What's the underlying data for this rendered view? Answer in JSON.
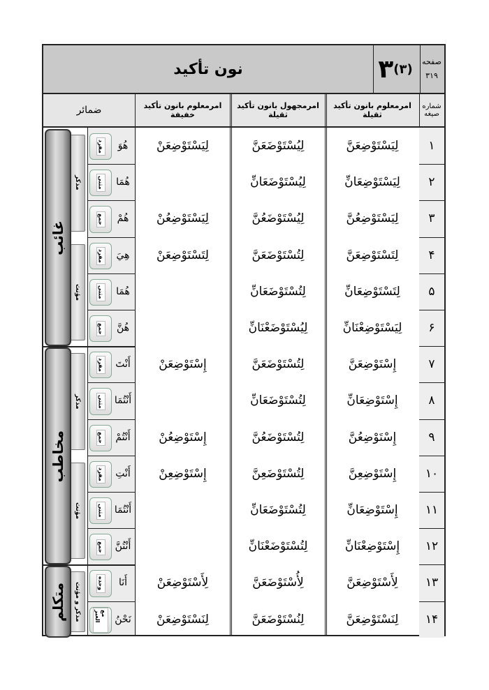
{
  "header": {
    "title": "نون تأکید",
    "chapter_number": "۳",
    "chapter_sub": "(۳)",
    "page_label": "صفحه",
    "page_number": "۳۱۹"
  },
  "columns": {
    "number": "شماره صیغه",
    "active_heavy": "امرمعلوم بانون تأکید ثقیلة",
    "passive_heavy": "امرمجهول بانون تأکید ثقیلة",
    "active_light": "امرمعلوم بانون تأکید خفیفة",
    "pronouns": "ضمائر"
  },
  "persons": [
    {
      "label": "غائب",
      "rows": [
        1,
        6
      ]
    },
    {
      "label": "مخاطب",
      "rows": [
        7,
        12
      ]
    },
    {
      "label": "متکلم",
      "rows": [
        13,
        14
      ]
    }
  ],
  "genders": [
    {
      "label": "مذکر",
      "rows": [
        1,
        3
      ]
    },
    {
      "label": "مؤنث",
      "rows": [
        4,
        6
      ]
    },
    {
      "label": "مذکر",
      "rows": [
        7,
        9
      ]
    },
    {
      "label": "مؤنث",
      "rows": [
        10,
        12
      ]
    },
    {
      "label": "مذکر و مؤنث",
      "rows": [
        13,
        14
      ]
    }
  ],
  "rows": [
    {
      "num": "۱",
      "active_heavy": "لِيَسْتَوْضِعَنَّ",
      "passive_heavy": "لِيُسْتَوْضَعَنَّ",
      "active_light": "لِيَسْتَوْضِعَنْ",
      "pronoun": "هُوَ",
      "count": "مفرد"
    },
    {
      "num": "۲",
      "active_heavy": "لِيَسْتَوْضِعَانِّ",
      "passive_heavy": "لِيُسْتَوْضَعَانِّ",
      "active_light": "",
      "pronoun": "هُمَا",
      "count": "مثنی"
    },
    {
      "num": "۳",
      "active_heavy": "لِيَسْتَوْضِعُنَّ",
      "passive_heavy": "لِيُسْتَوْضَعُنَّ",
      "active_light": "لِيَسْتَوْضِعُنْ",
      "pronoun": "هُمْ",
      "count": "جمع"
    },
    {
      "num": "۴",
      "active_heavy": "لِتَسْتَوْضِعَنَّ",
      "passive_heavy": "لِتُسْتَوْضَعَنَّ",
      "active_light": "لِتَسْتَوْضِعَنْ",
      "pronoun": "هِيَ",
      "count": "مفرد"
    },
    {
      "num": "۵",
      "active_heavy": "لِتَسْتَوْضِعَانِّ",
      "passive_heavy": "لِتُسْتَوْضَعَانِّ",
      "active_light": "",
      "pronoun": "هُمَا",
      "count": "مثنی"
    },
    {
      "num": "۶",
      "active_heavy": "لِيَسْتَوْضِعْنَانِّ",
      "passive_heavy": "لِيُسْتَوْضَعْنَانِّ",
      "active_light": "",
      "pronoun": "هُنَّ",
      "count": "جمع"
    },
    {
      "num": "۷",
      "active_heavy": "إِسْتَوْضِعَنَّ",
      "passive_heavy": "لِتُسْتَوْضَعَنَّ",
      "active_light": "إِسْتَوْضِعَنْ",
      "pronoun": "أَنْتَ",
      "count": "مفرد"
    },
    {
      "num": "۸",
      "active_heavy": "إِسْتَوْضِعَانِّ",
      "passive_heavy": "لِتُسْتَوْضَعَانِّ",
      "active_light": "",
      "pronoun": "أَنْتُمَا",
      "count": "مثنی"
    },
    {
      "num": "۹",
      "active_heavy": "إِسْتَوْضِعُنَّ",
      "passive_heavy": "لِتُسْتَوْضَعُنَّ",
      "active_light": "إِسْتَوْضِعُنْ",
      "pronoun": "أَنْتُمْ",
      "count": "جمع"
    },
    {
      "num": "۱۰",
      "active_heavy": "إِسْتَوْضِعِنَّ",
      "passive_heavy": "لِتُسْتَوْضَعِنَّ",
      "active_light": "إِسْتَوْضِعِنْ",
      "pronoun": "أَنْتِ",
      "count": "مفرد"
    },
    {
      "num": "۱۱",
      "active_heavy": "إِسْتَوْضِعَانِّ",
      "passive_heavy": "لِتُسْتَوْضَعَانِّ",
      "active_light": "",
      "pronoun": "أَنْتُمَا",
      "count": "مثنی"
    },
    {
      "num": "۱۲",
      "active_heavy": "إِسْتَوْضِعْنَانِّ",
      "passive_heavy": "لِتُسْتَوْضَعْنَانِّ",
      "active_light": "",
      "pronoun": "أَنْتُنَّ",
      "count": "جمع"
    },
    {
      "num": "۱۳",
      "active_heavy": "لِأَسْتَوْضِعَنَّ",
      "passive_heavy": "لِأُسْتَوْضَعَنَّ",
      "active_light": "لِأَسْتَوْضِعَنْ",
      "pronoun": "أَنَا",
      "count": "وحده"
    },
    {
      "num": "۱۴",
      "active_heavy": "لِنَسْتَوْضِعَنَّ",
      "passive_heavy": "لِنُسْتَوْضَعَنَّ",
      "active_light": "لِنَسْتَوْضِعَنْ",
      "pronoun": "نَحْنُ",
      "count": "مع الغیر"
    }
  ]
}
